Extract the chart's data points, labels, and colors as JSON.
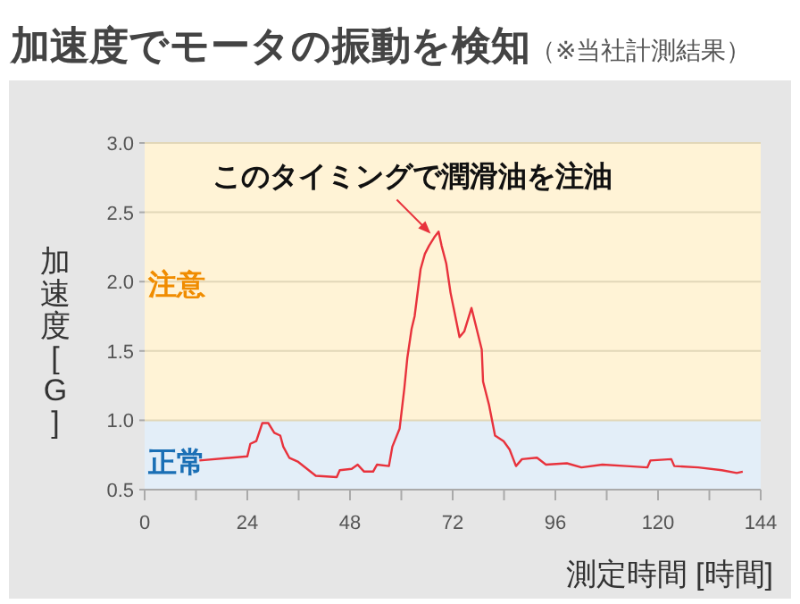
{
  "chart_data": {
    "type": "line",
    "title": "加速度でモータの振動を検知",
    "subtitle": "（※当社計測結果）",
    "xlabel": "測定時間 [時間]",
    "ylabel": "加速度[G]",
    "x": [
      12.8,
      24.0,
      24.7,
      26.1,
      27.5,
      28.9,
      30.3,
      31.7,
      32.4,
      33.8,
      35.9,
      40.0,
      44.9,
      45.6,
      48.4,
      49.8,
      51.3,
      53.4,
      54.3,
      57.1,
      57.9,
      59.6,
      60.7,
      61.4,
      62.4,
      63.1,
      64.5,
      65.5,
      66.5,
      67.7,
      68.7,
      69.4,
      70.5,
      71.5,
      73.6,
      74.7,
      76.4,
      78.8,
      79.1,
      80.5,
      81.9,
      83.9,
      85.3,
      86.8,
      88.2,
      91.7,
      93.8,
      98.7,
      102.1,
      107.0,
      112.6,
      117.5,
      118.2,
      123.1,
      123.8,
      129.4,
      134.9,
      138.4,
      139.8
    ],
    "series": [
      {
        "color": "#e8323c",
        "values": [
          0.71,
          0.74,
          0.83,
          0.85,
          0.98,
          0.98,
          0.91,
          0.89,
          0.81,
          0.73,
          0.7,
          0.6,
          0.59,
          0.64,
          0.65,
          0.68,
          0.63,
          0.63,
          0.68,
          0.67,
          0.81,
          0.94,
          1.23,
          1.45,
          1.66,
          1.75,
          2.09,
          2.2,
          2.26,
          2.32,
          2.36,
          2.26,
          2.13,
          1.92,
          1.6,
          1.64,
          1.81,
          1.51,
          1.28,
          1.11,
          0.89,
          0.85,
          0.79,
          0.67,
          0.72,
          0.73,
          0.68,
          0.69,
          0.66,
          0.68,
          0.67,
          0.66,
          0.71,
          0.72,
          0.67,
          0.66,
          0.64,
          0.62,
          0.63
        ]
      }
    ],
    "xlim": [
      0,
      144
    ],
    "ylim": [
      0.5,
      3.0
    ],
    "xticks": [
      0,
      {
        "value": 12,
        "label": null
      },
      24,
      {
        "value": 36,
        "label": null
      },
      48,
      {
        "value": 60,
        "label": null
      },
      72,
      {
        "value": 84,
        "label": null
      },
      96,
      {
        "value": 108,
        "label": null
      },
      120,
      {
        "value": 132,
        "label": null
      },
      144
    ],
    "yticks": [
      0.5,
      {
        "value": 1,
        "label": "1.0"
      },
      1.5,
      {
        "value": 2,
        "label": "2.0"
      },
      2.5,
      {
        "value": 3,
        "label": "3.0"
      }
    ],
    "grid": "y",
    "bands": [
      {
        "axis": "y",
        "from": 0.5,
        "to": 1.0,
        "label": "正常",
        "color": "#e3eef8"
      },
      {
        "axis": "y",
        "from": 1.0,
        "to": 3.0,
        "label": "注意",
        "color": "#fff3d6"
      }
    ],
    "annotations": [
      {
        "text": "このタイミングで潤滑油を注油",
        "x": 67.7,
        "y": 2.32
      }
    ]
  }
}
